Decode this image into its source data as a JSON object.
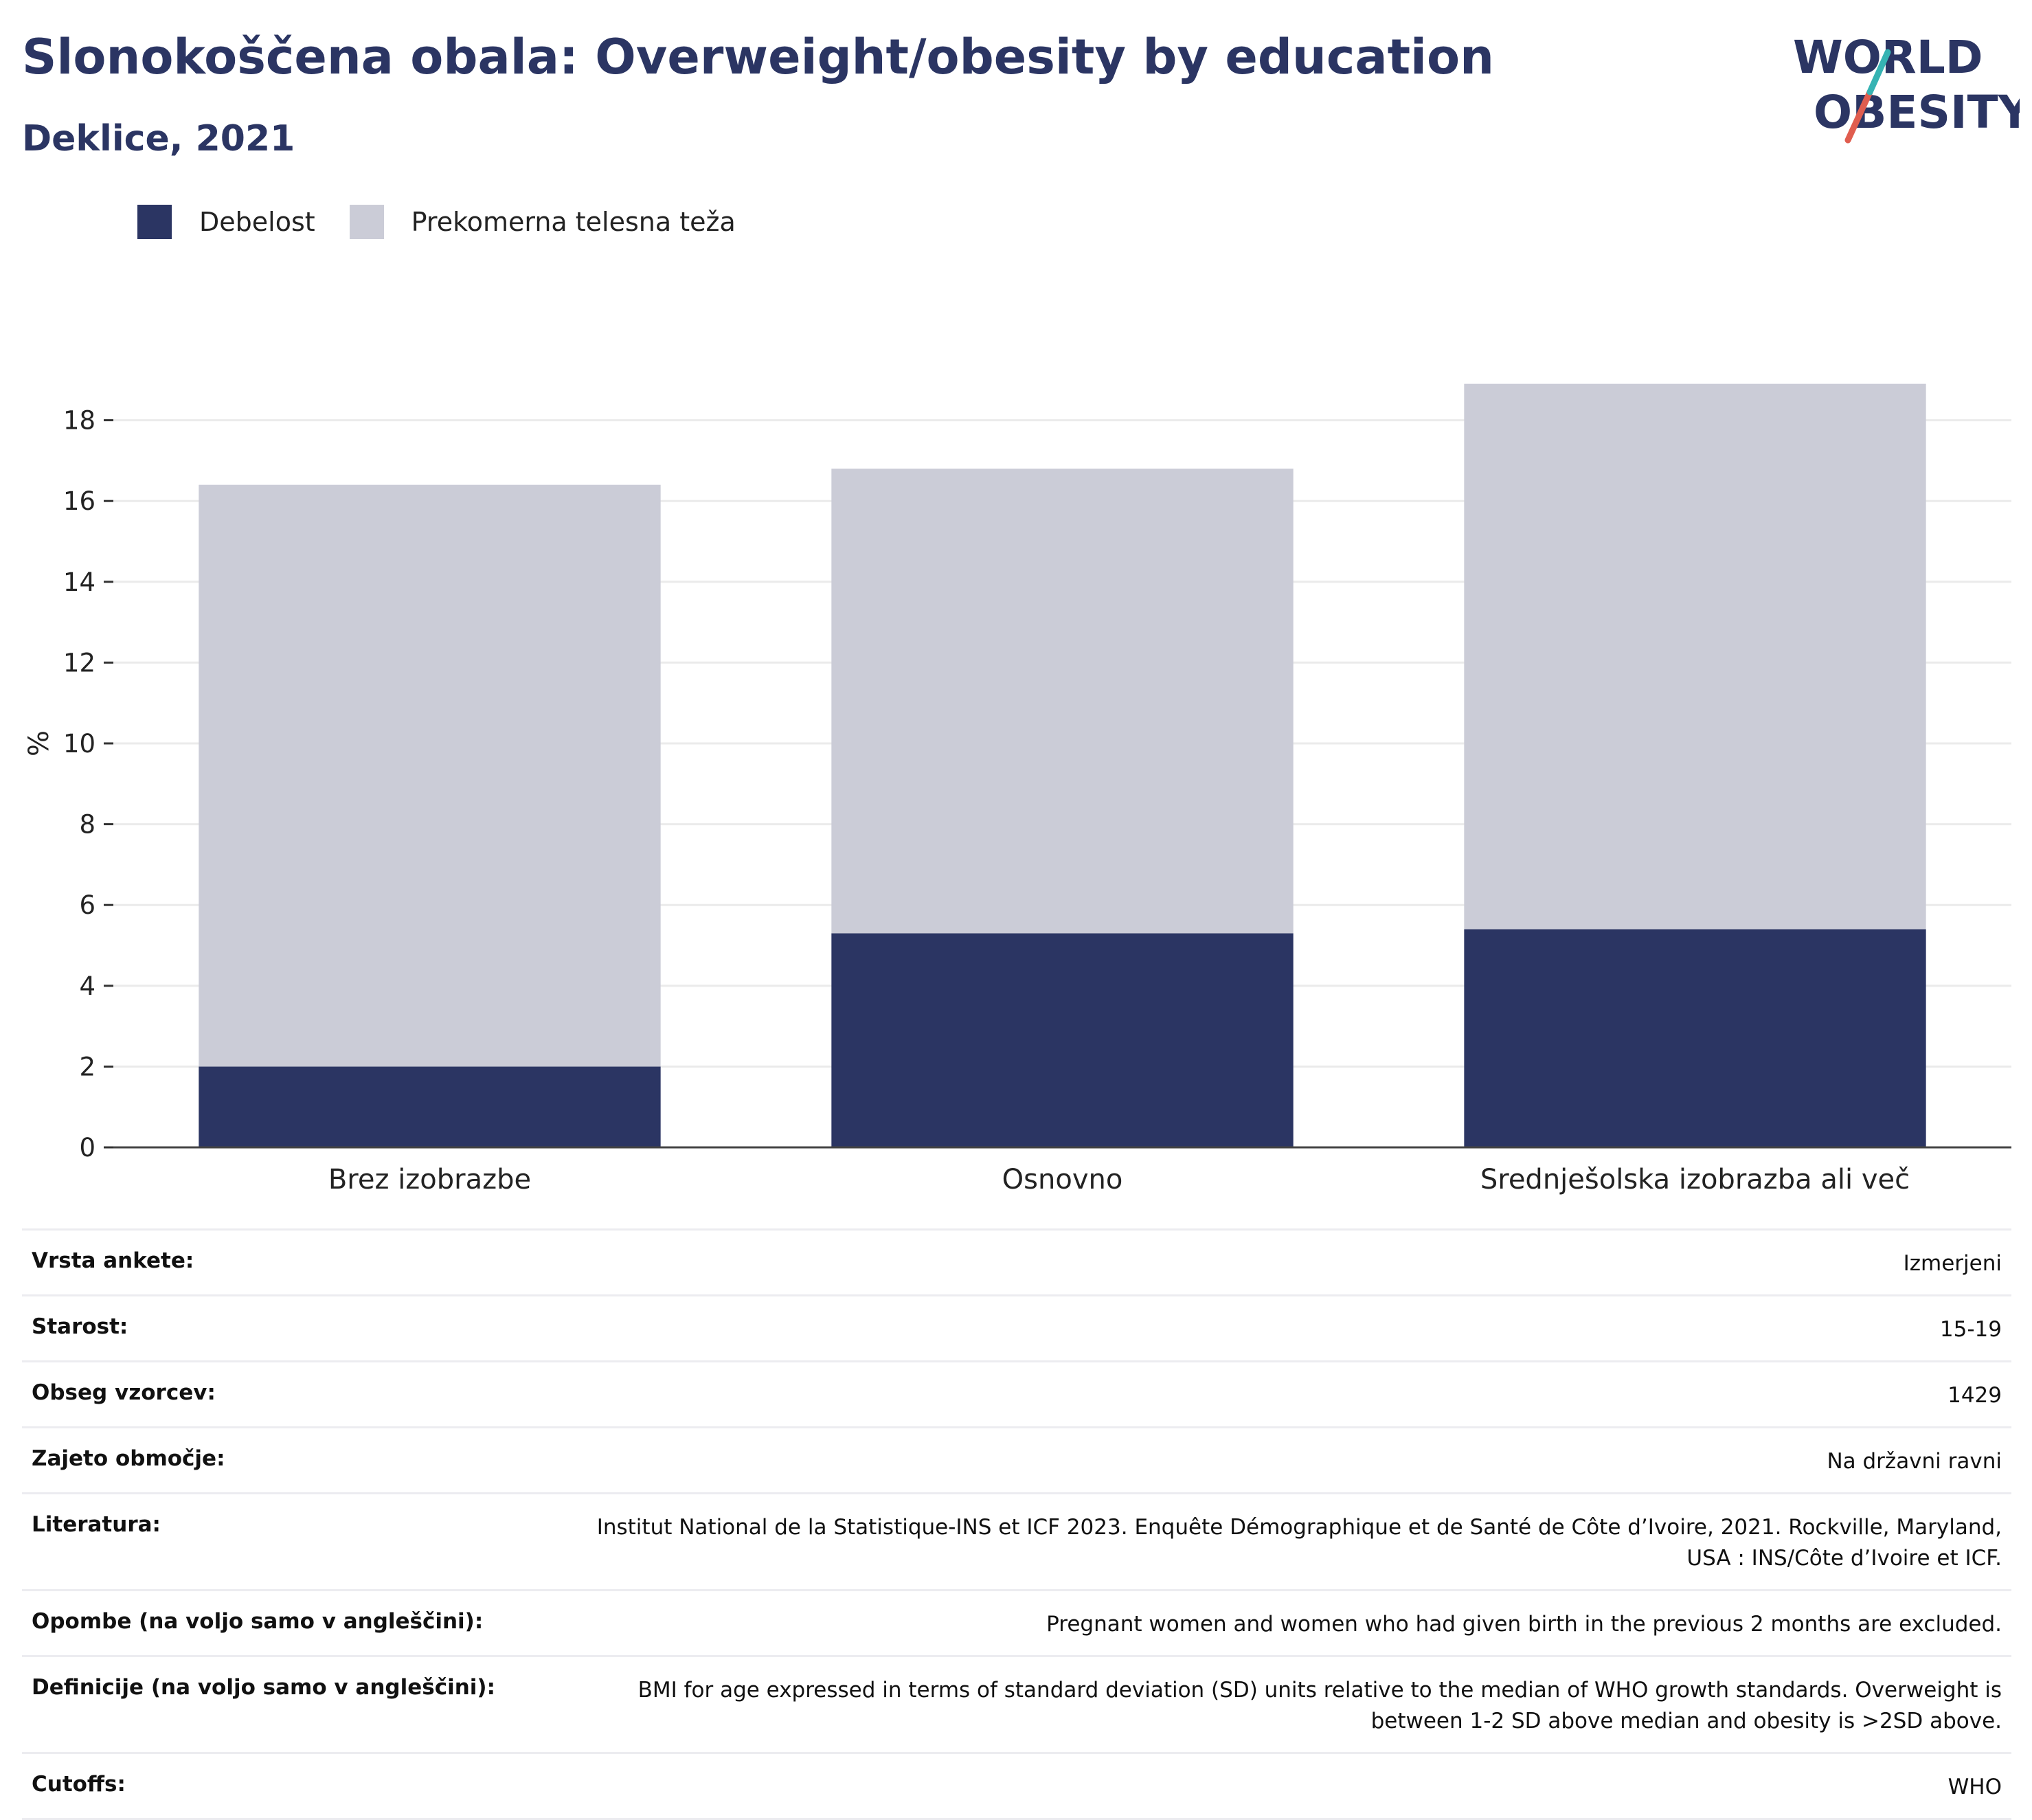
{
  "header": {
    "title": "Slonokoščena obala: Overweight/obesity by education",
    "subtitle": "Deklice, 2021"
  },
  "logo": {
    "line1": "WORLD",
    "line2": "OBESITY"
  },
  "colors": {
    "obesity": "#2b3563",
    "overweight": "#cbccd7",
    "accent_teal": "#36b3b3",
    "accent_red": "#e05d4f"
  },
  "chart_data": {
    "type": "bar",
    "stacked": true,
    "categories": [
      "Brez izobrazbe",
      "Osnovno",
      "Srednješolska izobrazba ali več"
    ],
    "series": [
      {
        "name": "Debelost",
        "values": [
          2.0,
          5.3,
          5.4
        ]
      },
      {
        "name": "Prekomerna telesna teža",
        "values": [
          14.4,
          11.5,
          13.5
        ]
      }
    ],
    "ylabel": "%",
    "ylim": [
      0,
      19.5
    ],
    "yticks": [
      "0",
      "2",
      "4",
      "6",
      "8",
      "10",
      "12",
      "14",
      "16",
      "18"
    ],
    "grid": true,
    "legend": "top-left"
  },
  "meta": [
    {
      "label": "Vrsta ankete:",
      "value": "Izmerjeni"
    },
    {
      "label": "Starost:",
      "value": "15-19"
    },
    {
      "label": "Obseg vzorcev:",
      "value": "1429"
    },
    {
      "label": "Zajeto območje:",
      "value": "Na državni ravni"
    },
    {
      "label": "Literatura:",
      "value": "Institut National de la Statistique-INS et ICF 2023. Enquête Démographique et de Santé de Côte d’Ivoire, 2021. Rockville, Maryland, USA : INS/Côte d’Ivoire et ICF."
    },
    {
      "label": "Opombe (na voljo samo v angleščini):",
      "value": "Pregnant women and women who had given birth in the previous 2 months are excluded."
    },
    {
      "label": "Definicije (na voljo samo v angleščini):",
      "value": "BMI for age expressed in terms of standard deviation (SD) units relative to the median of WHO growth standards. Overweight is between 1-2 SD above median and obesity is >2SD above."
    },
    {
      "label": "Cutoffs:",
      "value": "WHO"
    }
  ]
}
